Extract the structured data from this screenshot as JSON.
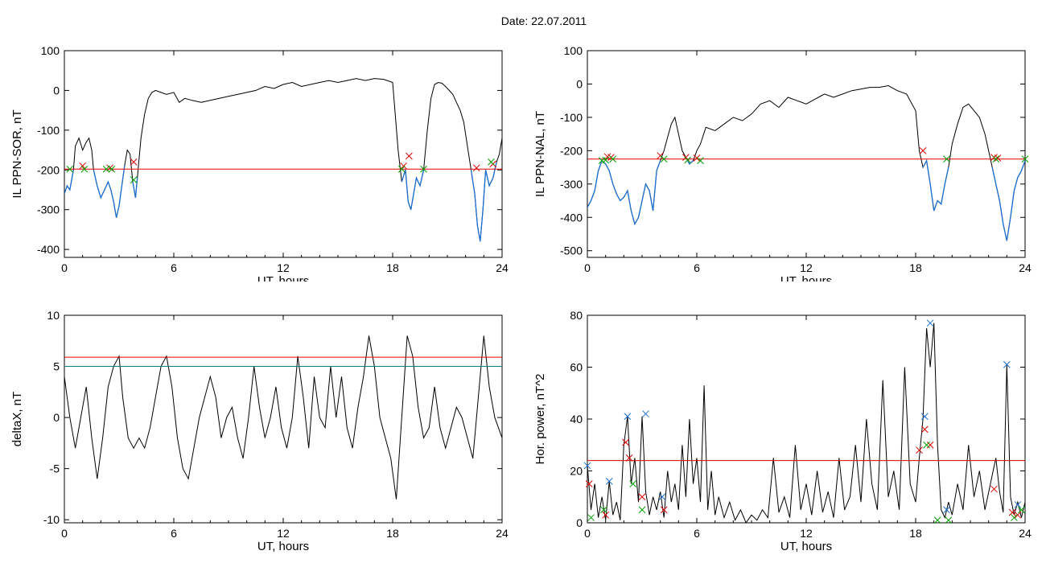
{
  "page": {
    "title": "Date:  22.07.2011"
  },
  "chart_data": [
    {
      "id": "panel1",
      "type": "line",
      "xlabel": "UT, hours",
      "ylabel": "IL PPN-SOR, nT",
      "xlim": [
        0,
        24
      ],
      "ylim": [
        -420,
        100
      ],
      "xticks": [
        0,
        6,
        12,
        18,
        24
      ],
      "yticks": [
        100,
        0,
        -100,
        -200,
        -300,
        -400
      ],
      "threshold_lines": [
        {
          "y": -198,
          "color": "#e00000"
        }
      ],
      "series": [
        {
          "color": "#000000",
          "x": [
            0,
            0.15,
            0.3,
            0.5,
            0.6,
            0.8,
            1.0,
            1.2,
            1.35,
            1.5,
            1.6,
            1.8,
            2.0,
            2.2,
            2.4,
            2.55,
            2.7,
            2.85,
            3.0,
            3.15,
            3.3,
            3.45,
            3.6,
            3.75,
            3.9,
            4.0,
            4.2,
            4.4,
            4.6,
            4.8,
            5.0,
            5.3,
            5.6,
            6.0,
            6.3,
            6.6,
            7.0,
            7.5,
            8.0,
            8.5,
            9.0,
            9.5,
            10.0,
            10.5,
            11.0,
            11.5,
            12.0,
            12.5,
            13.0,
            13.5,
            14.0,
            14.5,
            15.0,
            15.5,
            16.0,
            16.5,
            17.0,
            17.5,
            18.0,
            18.3,
            18.5,
            18.7,
            18.85,
            19.0,
            19.15,
            19.3,
            19.5,
            19.7,
            19.9,
            20.1,
            20.3,
            20.5,
            20.7,
            20.9,
            21.1,
            21.3,
            21.5,
            21.7,
            21.9,
            22.1,
            22.3,
            22.5,
            22.65,
            22.8,
            22.95,
            23.1,
            23.3,
            23.5,
            23.7,
            23.85,
            24.0
          ],
          "y": [
            -260,
            -240,
            -250,
            -200,
            -140,
            -120,
            -150,
            -130,
            -120,
            -150,
            -200,
            -240,
            -270,
            -250,
            -230,
            -250,
            -280,
            -320,
            -290,
            -240,
            -190,
            -150,
            -160,
            -230,
            -270,
            -220,
            -120,
            -60,
            -20,
            -5,
            0,
            -5,
            -10,
            -5,
            -30,
            -20,
            -25,
            -30,
            -25,
            -20,
            -15,
            -10,
            -5,
            0,
            10,
            5,
            15,
            20,
            10,
            15,
            20,
            25,
            20,
            25,
            30,
            25,
            30,
            28,
            20,
            -150,
            -230,
            -200,
            -280,
            -300,
            -260,
            -220,
            -240,
            -200,
            -100,
            -20,
            15,
            20,
            18,
            10,
            0,
            -10,
            -30,
            -50,
            -80,
            -140,
            -200,
            -260,
            -340,
            -380,
            -300,
            -200,
            -240,
            -220,
            -180,
            -160,
            -120
          ]
        }
      ],
      "markers": [
        {
          "symbol": "x",
          "color": "#e00000",
          "x": [
            1.0,
            2.5,
            3.8,
            18.6,
            18.9,
            22.6,
            23.5
          ],
          "y": [
            -190,
            -195,
            -180,
            -190,
            -165,
            -195,
            -185
          ]
        },
        {
          "symbol": "x",
          "color": "#00a000",
          "x": [
            0.3,
            1.1,
            2.3,
            2.6,
            3.8,
            18.5,
            19.7,
            23.4
          ],
          "y": [
            -198,
            -198,
            -198,
            -198,
            -225,
            -198,
            -198,
            -180
          ]
        }
      ]
    },
    {
      "id": "panel2",
      "type": "line",
      "xlabel": "UT, hours",
      "ylabel": "IL PPN-NAL, nT",
      "xlim": [
        0,
        24
      ],
      "ylim": [
        -520,
        100
      ],
      "xticks": [
        0,
        6,
        12,
        18,
        24
      ],
      "yticks": [
        100,
        0,
        -100,
        -200,
        -300,
        -400,
        -500
      ],
      "threshold_lines": [
        {
          "y": -225,
          "color": "#e00000"
        }
      ],
      "series": [
        {
          "color": "#000000",
          "x": [
            0,
            0.2,
            0.4,
            0.6,
            0.8,
            1.0,
            1.2,
            1.4,
            1.6,
            1.8,
            2.0,
            2.2,
            2.4,
            2.6,
            2.8,
            3.0,
            3.2,
            3.4,
            3.6,
            3.8,
            4.0,
            4.2,
            4.4,
            4.6,
            4.8,
            5.0,
            5.2,
            5.4,
            5.6,
            5.8,
            6.0,
            6.2,
            6.5,
            7.0,
            7.5,
            8.0,
            8.5,
            9.0,
            9.5,
            10.0,
            10.5,
            11.0,
            11.5,
            12.0,
            12.5,
            13.0,
            13.5,
            14.0,
            14.5,
            15.0,
            15.5,
            16.0,
            16.5,
            17.0,
            17.5,
            18.0,
            18.2,
            18.4,
            18.6,
            18.8,
            19.0,
            19.2,
            19.4,
            19.6,
            19.8,
            20.0,
            20.3,
            20.6,
            20.9,
            21.2,
            21.5,
            21.8,
            22.0,
            22.2,
            22.4,
            22.6,
            22.8,
            23.0,
            23.2,
            23.4,
            23.6,
            23.8,
            24.0
          ],
          "y": [
            -370,
            -350,
            -320,
            -260,
            -230,
            -240,
            -260,
            -300,
            -330,
            -350,
            -340,
            -320,
            -380,
            -420,
            -400,
            -350,
            -300,
            -320,
            -380,
            -260,
            -230,
            -200,
            -160,
            -120,
            -100,
            -150,
            -200,
            -220,
            -240,
            -230,
            -200,
            -180,
            -130,
            -140,
            -120,
            -100,
            -110,
            -90,
            -60,
            -50,
            -70,
            -40,
            -50,
            -60,
            -45,
            -30,
            -40,
            -30,
            -20,
            -15,
            -10,
            -10,
            -5,
            -20,
            -30,
            -80,
            -200,
            -250,
            -230,
            -300,
            -380,
            -350,
            -360,
            -300,
            -250,
            -180,
            -120,
            -70,
            -60,
            -80,
            -100,
            -150,
            -200,
            -250,
            -300,
            -350,
            -420,
            -470,
            -400,
            -320,
            -280,
            -260,
            -230
          ]
        }
      ],
      "markers": [
        {
          "symbol": "x",
          "color": "#e00000",
          "x": [
            1.1,
            1.3,
            4.0,
            5.4,
            6.0,
            18.4,
            22.3,
            22.5
          ],
          "y": [
            -218,
            -220,
            -215,
            -220,
            -222,
            -200,
            -220,
            -222
          ]
        },
        {
          "symbol": "x",
          "color": "#00a000",
          "x": [
            0.8,
            1.0,
            1.4,
            4.2,
            5.5,
            6.2,
            19.7,
            22.4,
            24.0
          ],
          "y": [
            -230,
            -228,
            -225,
            -225,
            -228,
            -230,
            -225,
            -225,
            -225
          ]
        }
      ]
    },
    {
      "id": "panel3",
      "type": "line",
      "xlabel": "UT, hours",
      "ylabel": "deltaX, nT",
      "xlim": [
        0,
        24
      ],
      "ylim": [
        -10.3,
        10
      ],
      "xticks": [
        0,
        6,
        12,
        18,
        24
      ],
      "yticks": [
        10,
        5,
        0,
        -5,
        -10
      ],
      "threshold_lines": [
        {
          "y": 5.9,
          "color": "#e00000"
        },
        {
          "y": 5.0,
          "color": "#008080"
        }
      ],
      "series": [
        {
          "color": "#000000",
          "x": [
            0,
            0.3,
            0.6,
            0.9,
            1.2,
            1.5,
            1.8,
            2.1,
            2.4,
            2.7,
            3.0,
            3.2,
            3.5,
            3.8,
            4.1,
            4.4,
            4.7,
            5.0,
            5.3,
            5.6,
            5.9,
            6.2,
            6.5,
            6.8,
            7.1,
            7.4,
            7.7,
            8.0,
            8.3,
            8.6,
            8.9,
            9.2,
            9.5,
            9.8,
            10.1,
            10.4,
            10.7,
            11.0,
            11.3,
            11.6,
            11.9,
            12.2,
            12.5,
            12.8,
            13.1,
            13.4,
            13.7,
            14.0,
            14.3,
            14.6,
            14.9,
            15.2,
            15.5,
            15.8,
            16.1,
            16.4,
            16.7,
            17.0,
            17.3,
            17.6,
            17.9,
            18.2,
            18.5,
            18.8,
            19.1,
            19.4,
            19.7,
            20.0,
            20.3,
            20.6,
            20.9,
            21.2,
            21.5,
            21.8,
            22.1,
            22.4,
            22.7,
            23.0,
            23.3,
            23.6,
            24.0
          ],
          "y": [
            4,
            0,
            -3,
            0,
            3,
            -2,
            -6,
            -2,
            3,
            5,
            6,
            2,
            -2,
            -3,
            -2,
            -3,
            -1,
            2,
            5,
            6,
            3,
            -2,
            -5,
            -6,
            -3,
            0,
            2,
            4,
            2,
            -2,
            0,
            1,
            -2,
            -4,
            0,
            5,
            1,
            -2,
            0,
            3,
            -1,
            -3,
            0,
            6,
            2,
            -3,
            4,
            0,
            -1,
            5,
            0,
            4,
            -1,
            -3,
            1,
            4,
            8,
            5,
            0,
            -2,
            -4,
            -8,
            0,
            8,
            6,
            1,
            -2,
            -1,
            3,
            -1,
            -3,
            -1,
            1,
            0,
            -2,
            -4,
            2,
            8,
            3,
            0,
            -2
          ]
        }
      ],
      "markers": []
    },
    {
      "id": "panel4",
      "type": "line",
      "xlabel": "UT, hours",
      "ylabel": "Hor. power, nT^2",
      "xlim": [
        0,
        24
      ],
      "ylim": [
        0,
        80
      ],
      "xticks": [
        0,
        6,
        12,
        18,
        24
      ],
      "yticks": [
        80,
        60,
        40,
        20,
        0
      ],
      "threshold_lines": [
        {
          "y": 24,
          "color": "#e00000"
        }
      ],
      "series": [
        {
          "color": "#000000",
          "x": [
            0,
            0.2,
            0.4,
            0.6,
            0.8,
            1.0,
            1.2,
            1.4,
            1.6,
            1.8,
            2.0,
            2.2,
            2.4,
            2.6,
            2.8,
            3.0,
            3.2,
            3.4,
            3.6,
            3.8,
            4.0,
            4.2,
            4.4,
            4.6,
            4.8,
            5.0,
            5.2,
            5.4,
            5.6,
            5.8,
            6.0,
            6.2,
            6.4,
            6.6,
            6.8,
            7.0,
            7.2,
            7.5,
            7.8,
            8.1,
            8.4,
            8.7,
            9.0,
            9.3,
            9.6,
            9.9,
            10.2,
            10.5,
            10.8,
            11.1,
            11.4,
            11.7,
            12.0,
            12.3,
            12.6,
            12.9,
            13.2,
            13.5,
            13.8,
            14.1,
            14.4,
            14.7,
            15.0,
            15.3,
            15.6,
            15.9,
            16.2,
            16.5,
            16.8,
            17.1,
            17.4,
            17.7,
            18.0,
            18.2,
            18.4,
            18.6,
            18.8,
            19.0,
            19.2,
            19.4,
            19.6,
            19.8,
            20.0,
            20.3,
            20.6,
            20.9,
            21.2,
            21.5,
            21.8,
            22.1,
            22.4,
            22.6,
            22.8,
            23.0,
            23.2,
            23.4,
            23.6,
            23.8,
            24.0
          ],
          "y": [
            22,
            5,
            15,
            2,
            10,
            1,
            16,
            3,
            8,
            1,
            30,
            41,
            15,
            25,
            8,
            41,
            12,
            3,
            10,
            5,
            12,
            2,
            20,
            8,
            15,
            5,
            30,
            10,
            40,
            15,
            25,
            8,
            53,
            5,
            20,
            3,
            10,
            2,
            8,
            1,
            5,
            0,
            3,
            1,
            5,
            2,
            25,
            4,
            10,
            2,
            30,
            5,
            15,
            3,
            20,
            4,
            12,
            2,
            25,
            5,
            10,
            30,
            8,
            40,
            15,
            5,
            55,
            10,
            20,
            5,
            60,
            15,
            8,
            25,
            40,
            75,
            60,
            77,
            30,
            5,
            2,
            8,
            3,
            15,
            5,
            30,
            10,
            20,
            5,
            15,
            25,
            12,
            4,
            61,
            10,
            3,
            8,
            2,
            8
          ]
        }
      ],
      "markers": [
        {
          "symbol": "x",
          "color": "#e00000",
          "x": [
            0.1,
            1.0,
            2.1,
            2.3,
            3.0,
            4.2,
            18.2,
            18.5,
            18.8,
            22.3,
            23.3,
            23.6
          ],
          "y": [
            15,
            3,
            31,
            25,
            10,
            5,
            28,
            36,
            30,
            13,
            4,
            3
          ]
        },
        {
          "symbol": "x",
          "color": "#1a6fd0",
          "x": [
            0,
            1.2,
            2.2,
            3.2,
            4.1,
            18.5,
            18.8,
            19.7,
            23.0,
            23.6
          ],
          "y": [
            22,
            16,
            41,
            42,
            10,
            41,
            77,
            5,
            61,
            7
          ]
        },
        {
          "symbol": "x",
          "color": "#00a000",
          "x": [
            0.2,
            0.9,
            2.5,
            3.0,
            18.6,
            19.2,
            19.8,
            23.4,
            23.8
          ],
          "y": [
            2,
            5,
            15,
            5,
            30,
            1,
            1,
            2,
            5
          ]
        }
      ]
    }
  ]
}
